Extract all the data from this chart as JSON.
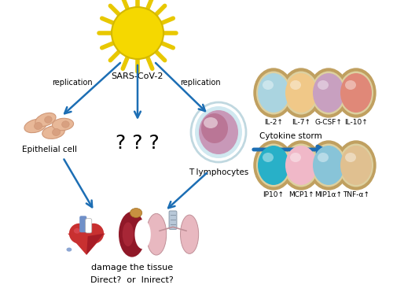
{
  "bg_color": "#ffffff",
  "arrow_color": "#1c6eb4",
  "sars_label": "SARS-CoV-2",
  "epithelial_label": "Epithelial cell",
  "t_lymph_label": "T lymphocytes",
  "question_marks": "? ? ?",
  "replication_left": "replication",
  "replication_right": "replication",
  "cytokine_storm_label": "Cytokine storm",
  "damage_label": "damage the tissue",
  "direct_label": "Direct?  or  Inirect?",
  "cytokines_row1": [
    "IL-2↑",
    "IL-7↑",
    "G-CSF↑",
    "IL-10↑"
  ],
  "cytokines_row2": [
    "IP10↑",
    "MCP1↑",
    "MIP1α↑",
    "TNF-α↑"
  ],
  "cytokine_inner_colors_row1": [
    "#aad4e0",
    "#f0c888",
    "#c8a0c0",
    "#e08878"
  ],
  "cytokine_inner_colors_row2": [
    "#28b0c8",
    "#f0b8c8",
    "#88c4d8",
    "#e0c090"
  ],
  "cytokine_outer_color": "#c0a060",
  "cytokine_mid_color": "#ddd0a0",
  "sun_color": "#f5d800",
  "sun_edge_color": "#d4b800",
  "sun_spike_color": "#e8c800",
  "t_cell_outer": "#c0d8e0",
  "t_cell_mid": "#d0e8f0",
  "t_cell_inner1": "#c898b8",
  "t_cell_inner2": "#b87090",
  "epi_cell_color": "#e8b898",
  "epi_cell_edge": "#d09878",
  "epi_nucleus_color": "#d8a080",
  "heart_main": "#c83030",
  "heart_dark": "#901020",
  "heart_light": "#e05060",
  "heart_blue": "#7090c8",
  "kidney_dark": "#701020",
  "kidney_medium": "#901828",
  "kidney_adrenal": "#c89040",
  "lung_color": "#e8b8c0",
  "lung_edge": "#c09098",
  "trachea_color": "#b8c8d8",
  "figsize": [
    5.0,
    3.71
  ],
  "dpi": 100
}
